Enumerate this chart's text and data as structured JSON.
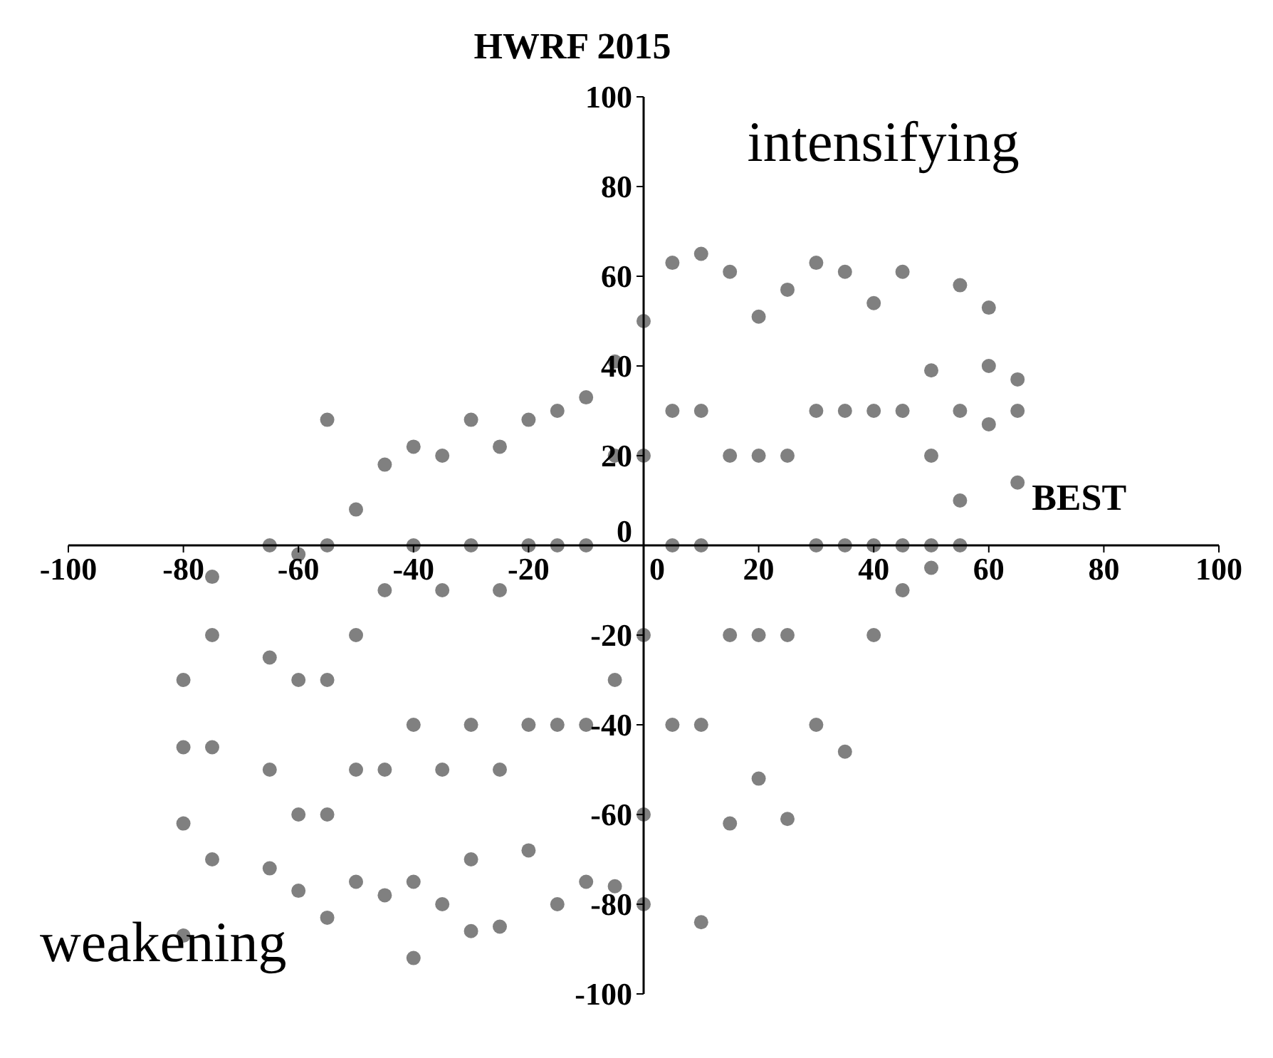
{
  "chart_data": {
    "type": "scatter",
    "title": "HWRF 2015",
    "xlabel": "BEST",
    "annotations": [
      "intensifying",
      "weakening"
    ],
    "x": [
      -80,
      -80,
      -80,
      -80,
      -75,
      -75,
      -75,
      -75,
      -65,
      -65,
      -65,
      -65,
      -60,
      -60,
      -60,
      -60,
      -55,
      -55,
      -55,
      -55,
      -55,
      -50,
      -50,
      -50,
      -50,
      -45,
      -45,
      -45,
      -45,
      -40,
      -40,
      -40,
      -40,
      -40,
      -35,
      -35,
      -35,
      -35,
      -30,
      -30,
      -30,
      -30,
      -30,
      -25,
      -25,
      -25,
      -25,
      -20,
      -20,
      -20,
      -20,
      -15,
      -15,
      -15,
      -15,
      -10,
      -10,
      -10,
      -10,
      -5,
      -5,
      -5,
      -5,
      0,
      0,
      0,
      0,
      0,
      5,
      5,
      5,
      5,
      10,
      10,
      10,
      10,
      10,
      15,
      15,
      15,
      15,
      20,
      20,
      20,
      20,
      25,
      25,
      25,
      25,
      30,
      30,
      30,
      30,
      35,
      35,
      35,
      35,
      40,
      40,
      40,
      40,
      45,
      45,
      45,
      45,
      50,
      50,
      50,
      50,
      55,
      55,
      55,
      55,
      60,
      60,
      60,
      65,
      65,
      65
    ],
    "values": [
      -30,
      -45,
      -62,
      -87,
      -7,
      -20,
      -45,
      -70,
      0,
      -25,
      -50,
      -72,
      -2,
      -30,
      -60,
      -77,
      28,
      0,
      -30,
      -60,
      -83,
      8,
      -20,
      -50,
      -75,
      18,
      -10,
      -50,
      -78,
      22,
      0,
      -40,
      -75,
      -92,
      20,
      -10,
      -50,
      -80,
      28,
      0,
      -40,
      -70,
      -86,
      22,
      -10,
      -50,
      -85,
      28,
      0,
      -40,
      -68,
      30,
      0,
      -40,
      -80,
      33,
      0,
      -40,
      -75,
      41,
      20,
      -30,
      -76,
      50,
      20,
      -20,
      -60,
      -80,
      63,
      30,
      0,
      -40,
      65,
      30,
      0,
      -40,
      -84,
      61,
      20,
      -20,
      -62,
      51,
      20,
      -20,
      -52,
      57,
      20,
      -20,
      -61,
      63,
      30,
      0,
      -40,
      61,
      30,
      0,
      -46,
      54,
      30,
      0,
      -20,
      61,
      30,
      0,
      -10,
      39,
      20,
      0,
      -5,
      58,
      30,
      10,
      0,
      53,
      40,
      27,
      37,
      30,
      14
    ],
    "color": "#808080",
    "marker": "circle",
    "grid": false,
    "xlim": [
      -100,
      100
    ],
    "xticks": [
      -100,
      -80,
      -60,
      -40,
      -20,
      0,
      20,
      40,
      60,
      80,
      100
    ],
    "ylim": [
      -100,
      100
    ],
    "yticks": [
      -100,
      -80,
      -60,
      -40,
      -20,
      0,
      20,
      40,
      60,
      80,
      100
    ]
  }
}
